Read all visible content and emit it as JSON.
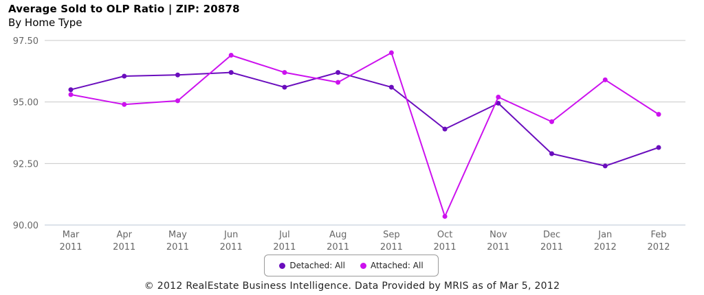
{
  "header": {
    "title": "Average Sold to OLP Ratio | ZIP: 20878",
    "subtitle": "By Home Type"
  },
  "footer": {
    "text": "© 2012 RealEstate Business Intelligence. Data Provided by MRIS as of Mar 5, 2012"
  },
  "chart_data": {
    "type": "line",
    "title": "Average Sold to OLP Ratio | ZIP: 20878",
    "subtitle": "By Home Type",
    "xlabel": "",
    "ylabel": "",
    "categories": [
      [
        "Mar",
        "2011"
      ],
      [
        "Apr",
        "2011"
      ],
      [
        "May",
        "2011"
      ],
      [
        "Jun",
        "2011"
      ],
      [
        "Jul",
        "2011"
      ],
      [
        "Aug",
        "2011"
      ],
      [
        "Sep",
        "2011"
      ],
      [
        "Oct",
        "2011"
      ],
      [
        "Nov",
        "2011"
      ],
      [
        "Dec",
        "2011"
      ],
      [
        "Jan",
        "2012"
      ],
      [
        "Feb",
        "2012"
      ]
    ],
    "yticks": [
      "90.00",
      "92.50",
      "95.00",
      "97.50"
    ],
    "ylim": [
      90,
      97.5
    ],
    "grid": "horizontal",
    "legend_position": "bottom",
    "series": [
      {
        "name": "Detached: All",
        "color": "#6a0dbd",
        "values": [
          95.5,
          96.05,
          96.1,
          96.2,
          95.6,
          96.2,
          95.6,
          93.9,
          94.95,
          92.9,
          92.4,
          93.15
        ]
      },
      {
        "name": "Attached: All",
        "color": "#cc11ee",
        "values": [
          95.3,
          94.9,
          95.05,
          96.9,
          96.2,
          95.8,
          97.0,
          90.35,
          95.2,
          94.2,
          95.9,
          94.5
        ]
      }
    ]
  }
}
